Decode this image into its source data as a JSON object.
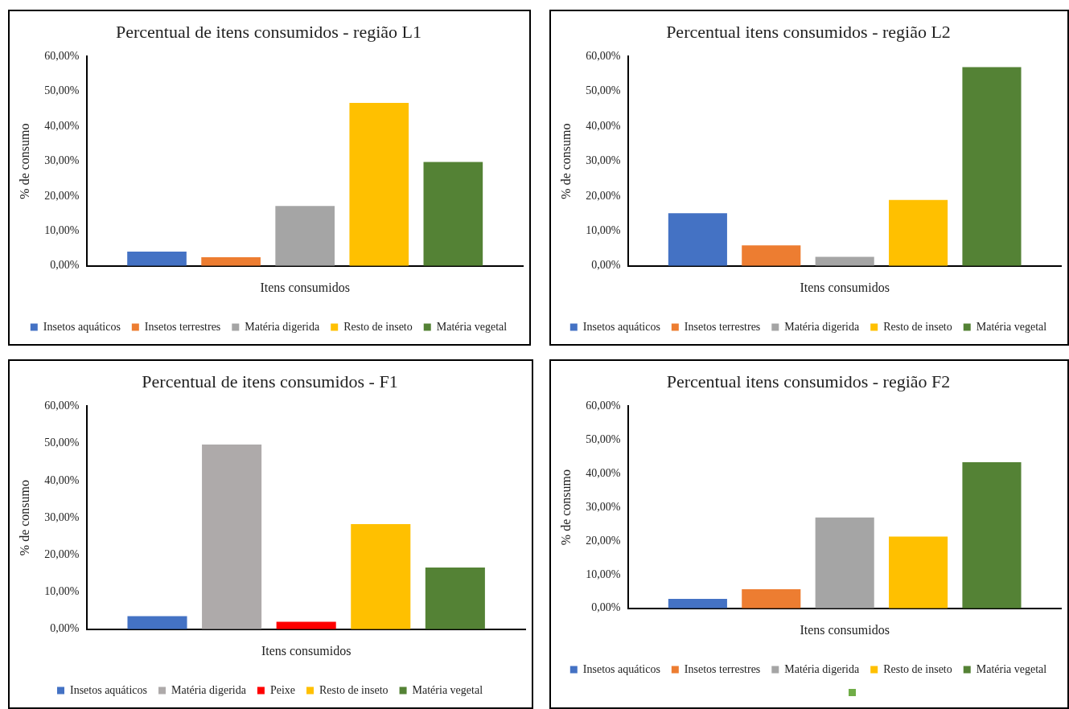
{
  "chart_data": [
    {
      "type": "bar",
      "title": "Percentual de itens consumidos - região L1",
      "xlabel": "Itens consumidos",
      "ylabel": "% de consumo",
      "categories": [
        null
      ],
      "ylim": [
        0,
        60
      ],
      "yticks": [
        {
          "value": 0,
          "label": "0,00%"
        },
        {
          "value": 10,
          "label": "10,00%"
        },
        {
          "value": 20,
          "label": "20,00%"
        },
        {
          "value": 30,
          "label": "30,00%"
        },
        {
          "value": 40,
          "label": "40,00%"
        },
        {
          "value": 50,
          "label": "50,00%"
        },
        {
          "value": 60,
          "label": "60,00%"
        }
      ],
      "tick_labels": "y",
      "grid": false,
      "legend": "bottom",
      "series": [
        {
          "name": "Insetos aquáticos",
          "color": "#4472c4",
          "values": [
            4.1
          ]
        },
        {
          "name": "Insetos terrestres",
          "color": "#ed7d31",
          "values": [
            2.5
          ]
        },
        {
          "name": "Matéria digerida",
          "color": "#a5a5a5",
          "values": [
            17.2
          ]
        },
        {
          "name": "Resto de inseto",
          "color": "#ffc000",
          "values": [
            46.7
          ]
        },
        {
          "name": "Matéria vegetal",
          "color": "#548235",
          "values": [
            29.8
          ]
        }
      ]
    },
    {
      "type": "bar",
      "title": "Percentual itens consumidos - região L2",
      "xlabel": "Itens consumidos",
      "ylabel": "% de consumo",
      "categories": [
        null
      ],
      "ylim": [
        0,
        60
      ],
      "yticks": [
        {
          "value": 0,
          "label": "0,00%"
        },
        {
          "value": 10,
          "label": "10,00%"
        },
        {
          "value": 20,
          "label": "20,00%"
        },
        {
          "value": 30,
          "label": "30,00%"
        },
        {
          "value": 40,
          "label": "40,00%"
        },
        {
          "value": 50,
          "label": "50,00%"
        },
        {
          "value": 60,
          "label": "60,00%"
        }
      ],
      "tick_labels": "y",
      "grid": false,
      "legend": "bottom",
      "series": [
        {
          "name": "Insetos aquáticos",
          "color": "#4472c4",
          "values": [
            15.1
          ]
        },
        {
          "name": "Insetos terrestres",
          "color": "#ed7d31",
          "values": [
            5.9
          ]
        },
        {
          "name": "Matéria digerida",
          "color": "#a5a5a5",
          "values": [
            2.6
          ]
        },
        {
          "name": "Resto de inseto",
          "color": "#ffc000",
          "values": [
            18.9
          ]
        },
        {
          "name": "Matéria vegetal",
          "color": "#548235",
          "values": [
            57.0
          ]
        }
      ]
    },
    {
      "type": "bar",
      "title": "Percentual de itens consumidos - F1",
      "xlabel": "Itens consumidos",
      "ylabel": "% de consumo",
      "categories": [
        null
      ],
      "ylim": [
        0,
        60
      ],
      "yticks": [
        {
          "value": 0,
          "label": "0,00%"
        },
        {
          "value": 10,
          "label": "10,00%"
        },
        {
          "value": 20,
          "label": "20,00%"
        },
        {
          "value": 30,
          "label": "30,00%"
        },
        {
          "value": 40,
          "label": "40,00%"
        },
        {
          "value": 50,
          "label": "50,00%"
        },
        {
          "value": 60,
          "label": "60,00%"
        }
      ],
      "tick_labels": "y",
      "grid": false,
      "legend": "bottom",
      "series": [
        {
          "name": "Insetos aquáticos",
          "color": "#4472c4",
          "values": [
            3.5
          ]
        },
        {
          "name": "Matéria digerida",
          "color": "#aeaaaa",
          "values": [
            49.7
          ]
        },
        {
          "name": "Peixe",
          "color": "#ff0000",
          "values": [
            2.0
          ]
        },
        {
          "name": "Resto de inseto",
          "color": "#ffc000",
          "values": [
            28.3
          ]
        },
        {
          "name": "Matéria vegetal",
          "color": "#548235",
          "values": [
            16.6
          ]
        }
      ]
    },
    {
      "type": "bar",
      "title": "Percentual itens consumidos - região F2",
      "xlabel": "Itens consumidos",
      "ylabel": "% de consumo",
      "categories": [
        null
      ],
      "ylim": [
        0,
        60
      ],
      "yticks": [
        {
          "value": 0,
          "label": "0,00%"
        },
        {
          "value": 10,
          "label": "10,00%"
        },
        {
          "value": 20,
          "label": "20,00%"
        },
        {
          "value": 30,
          "label": "30,00%"
        },
        {
          "value": 40,
          "label": "40,00%"
        },
        {
          "value": 50,
          "label": "50,00%"
        },
        {
          "value": 60,
          "label": "60,00%"
        }
      ],
      "tick_labels": "y",
      "grid": false,
      "legend": "bottom",
      "series": [
        {
          "name": "Insetos aquáticos",
          "color": "#4472c4",
          "values": [
            2.8
          ]
        },
        {
          "name": "Insetos terrestres",
          "color": "#ed7d31",
          "values": [
            5.7
          ]
        },
        {
          "name": "Matéria digerida",
          "color": "#a5a5a5",
          "values": [
            27.0
          ]
        },
        {
          "name": "Resto de inseto",
          "color": "#ffc000",
          "values": [
            21.3
          ]
        },
        {
          "name": "Matéria vegetal",
          "color": "#548235",
          "values": [
            43.4
          ]
        }
      ]
    }
  ]
}
